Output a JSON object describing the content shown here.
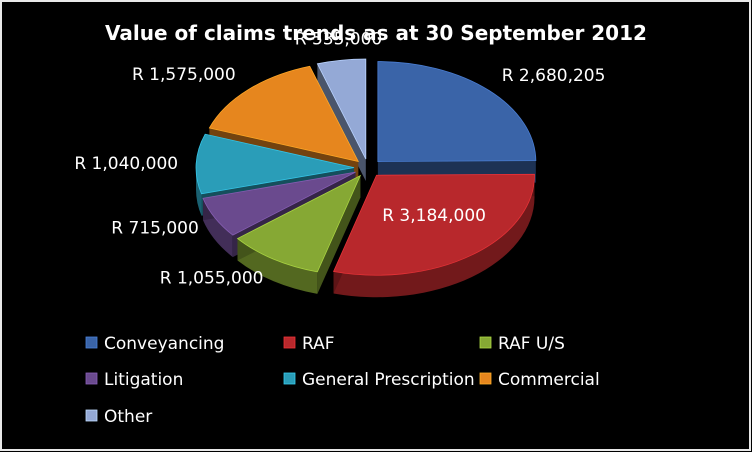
{
  "chart_data": {
    "type": "pie",
    "title": "Value of claims trends as at 30 September 2012",
    "categories": [
      "Conveyancing",
      "RAF",
      "RAF U/S",
      "Litigation",
      "General Prescription",
      "Commercial",
      "Other"
    ],
    "values": [
      2680205,
      3184000,
      1055000,
      715000,
      1040000,
      1575000,
      535000
    ],
    "data_labels": [
      "R 2,680,205",
      "R 3,184,000",
      "R 1,055,000",
      "R 715,000",
      "R 1,040,000",
      "R 1,575,000",
      "R 535,000"
    ],
    "colors": [
      "#3A64A8",
      "#B8282C",
      "#86A834",
      "#6A4A8E",
      "#2A9DB8",
      "#E6861E",
      "#94A9D6"
    ],
    "legend_position": "bottom",
    "exploded": true,
    "three_d": true
  }
}
